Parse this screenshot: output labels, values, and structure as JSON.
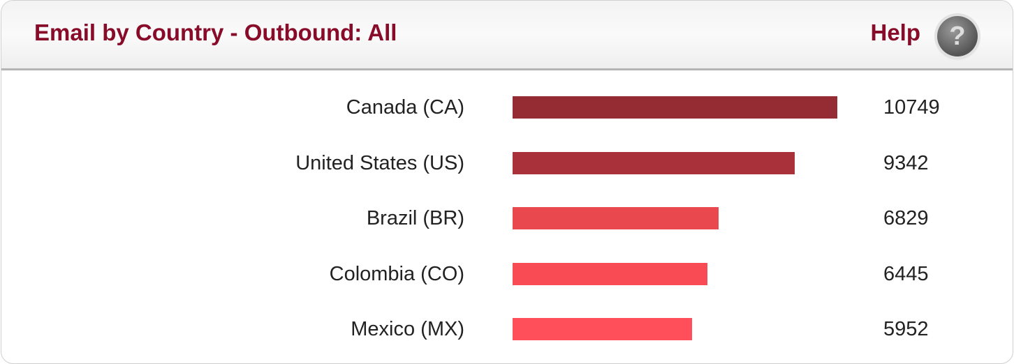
{
  "header": {
    "title": "Email by Country - Outbound: All",
    "help_label": "Help",
    "help_icon": "question-mark-icon"
  },
  "chart_data": {
    "type": "bar",
    "orientation": "horizontal",
    "title": "Email by Country - Outbound: All",
    "categories": [
      "Canada (CA)",
      "United States (US)",
      "Brazil (BR)",
      "Colombia (CO)",
      "Mexico (MX)"
    ],
    "values": [
      10749,
      9342,
      6829,
      6445,
      5952
    ],
    "colors": [
      "#952b33",
      "#a9323a",
      "#e9484f",
      "#f84b53",
      "#ff4f5a"
    ],
    "grid": false,
    "data_labels": true
  }
}
